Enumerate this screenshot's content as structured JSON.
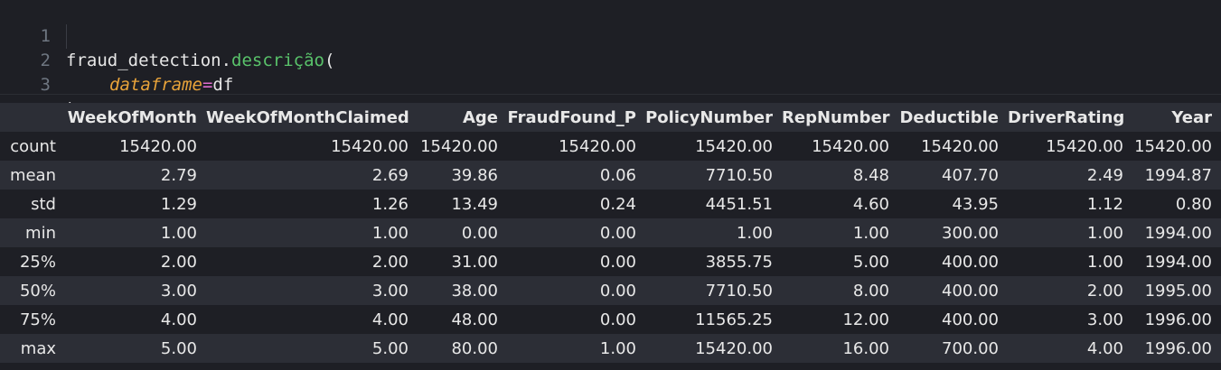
{
  "code": {
    "line_numbers": [
      "1",
      "2",
      "3"
    ],
    "line1": {
      "object": "fraud_detection",
      "dot": ".",
      "method": "descrição",
      "open_paren": "("
    },
    "line2": {
      "param": "dataframe",
      "equals": "=",
      "value": "df"
    },
    "line3": {
      "close_paren": ")"
    }
  },
  "table": {
    "columns": [
      "WeekOfMonth",
      "WeekOfMonthClaimed",
      "Age",
      "FraudFound_P",
      "PolicyNumber",
      "RepNumber",
      "Deductible",
      "DriverRating",
      "Year"
    ],
    "rows": [
      {
        "label": "count",
        "values": [
          "15420.00",
          "15420.00",
          "15420.00",
          "15420.00",
          "15420.00",
          "15420.00",
          "15420.00",
          "15420.00",
          "15420.00"
        ]
      },
      {
        "label": "mean",
        "values": [
          "2.79",
          "2.69",
          "39.86",
          "0.06",
          "7710.50",
          "8.48",
          "407.70",
          "2.49",
          "1994.87"
        ]
      },
      {
        "label": "std",
        "values": [
          "1.29",
          "1.26",
          "13.49",
          "0.24",
          "4451.51",
          "4.60",
          "43.95",
          "1.12",
          "0.80"
        ]
      },
      {
        "label": "min",
        "values": [
          "1.00",
          "1.00",
          "0.00",
          "0.00",
          "1.00",
          "1.00",
          "300.00",
          "1.00",
          "1994.00"
        ]
      },
      {
        "label": "25%",
        "values": [
          "2.00",
          "2.00",
          "31.00",
          "0.00",
          "3855.75",
          "5.00",
          "400.00",
          "1.00",
          "1994.00"
        ]
      },
      {
        "label": "50%",
        "values": [
          "3.00",
          "3.00",
          "38.00",
          "0.00",
          "7710.50",
          "8.00",
          "400.00",
          "2.00",
          "1995.00"
        ]
      },
      {
        "label": "75%",
        "values": [
          "4.00",
          "4.00",
          "48.00",
          "0.00",
          "11565.25",
          "12.00",
          "400.00",
          "3.00",
          "1996.00"
        ]
      },
      {
        "label": "max",
        "values": [
          "5.00",
          "5.00",
          "80.00",
          "1.00",
          "15420.00",
          "16.00",
          "700.00",
          "4.00",
          "1996.00"
        ]
      }
    ]
  },
  "colors": {
    "background": "#1e1f25",
    "stripe": "#2c2e36",
    "text": "#e8e8e8",
    "function": "#59c26a",
    "parameter": "#e8a33a",
    "operator": "#e06cd0",
    "line_number": "#6e7681"
  }
}
